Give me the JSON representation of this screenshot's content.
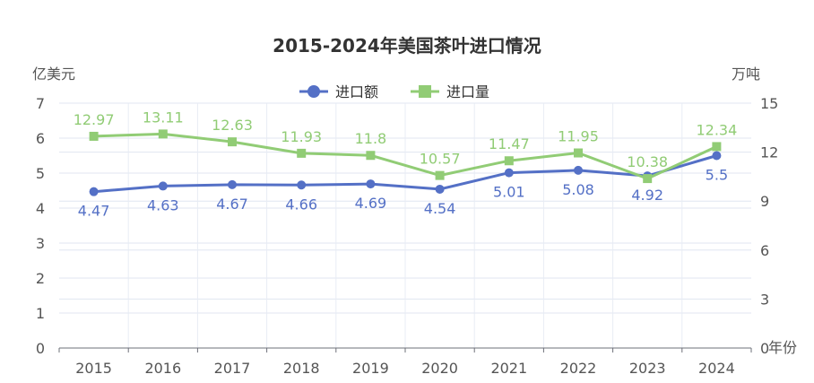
{
  "chart_data": {
    "type": "line",
    "title": "2015-2024年美国茶叶进口情况",
    "categories": [
      "2015",
      "2016",
      "2017",
      "2018",
      "2019",
      "2020",
      "2021",
      "2022",
      "2023",
      "2024"
    ],
    "x_axis_unit": "年份",
    "y_left": {
      "label": "亿美元",
      "ticks": [
        "0",
        "1",
        "2",
        "3",
        "4",
        "5",
        "6",
        "7"
      ],
      "ylim": [
        0,
        7
      ]
    },
    "y_right": {
      "label": "万吨",
      "ticks": [
        "0",
        "3",
        "6",
        "9",
        "12",
        "15"
      ],
      "ylim": [
        0,
        15
      ]
    },
    "legend_position": "top-center",
    "grid": true,
    "series": [
      {
        "name": "进口额",
        "axis": "left",
        "color": "#5470c6",
        "marker": "circle",
        "values": [
          4.47,
          4.63,
          4.67,
          4.66,
          4.69,
          4.54,
          5.01,
          5.08,
          4.92,
          5.5
        ],
        "labels": [
          "4.47",
          "4.63",
          "4.67",
          "4.66",
          "4.69",
          "4.54",
          "5.01",
          "5.08",
          "4.92",
          "5.5"
        ],
        "label_position": "below"
      },
      {
        "name": "进口量",
        "axis": "right",
        "color": "#91cc75",
        "marker": "square",
        "values": [
          12.97,
          13.11,
          12.63,
          11.93,
          11.8,
          10.57,
          11.47,
          11.95,
          10.38,
          12.34
        ],
        "labels": [
          "12.97",
          "13.11",
          "12.63",
          "11.93",
          "11.8",
          "10.57",
          "11.47",
          "11.95",
          "10.38",
          "12.34"
        ],
        "label_position": "above"
      }
    ]
  }
}
